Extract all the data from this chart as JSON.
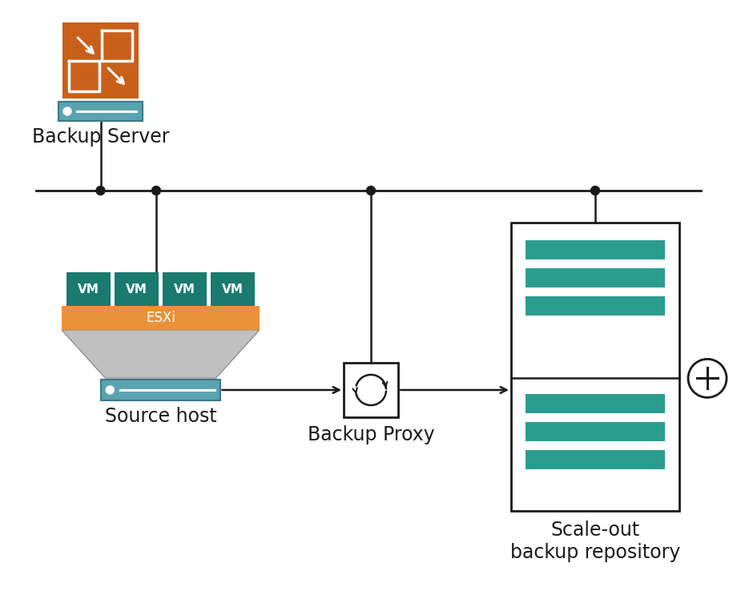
{
  "bg_color": "#ffffff",
  "teal_color": "#2b9d8f",
  "orange_color": "#c8601a",
  "esxi_color": "#e8923a",
  "vm_color": "#1a7a6e",
  "server_body_color": "#5ba3b0",
  "line_color": "#1a1a1a",
  "text_color": "#1a1a1a",
  "backup_server_label": "Backup Server",
  "source_host_label": "Source host",
  "proxy_label": "Backup Proxy",
  "repo_label": "Scale-out\nbackup repository",
  "vm_labels": [
    "VM",
    "VM",
    "VM",
    "VM"
  ],
  "esxi_label": "ESXi",
  "fig_w": 9.3,
  "fig_h": 7.63,
  "dpi": 100
}
